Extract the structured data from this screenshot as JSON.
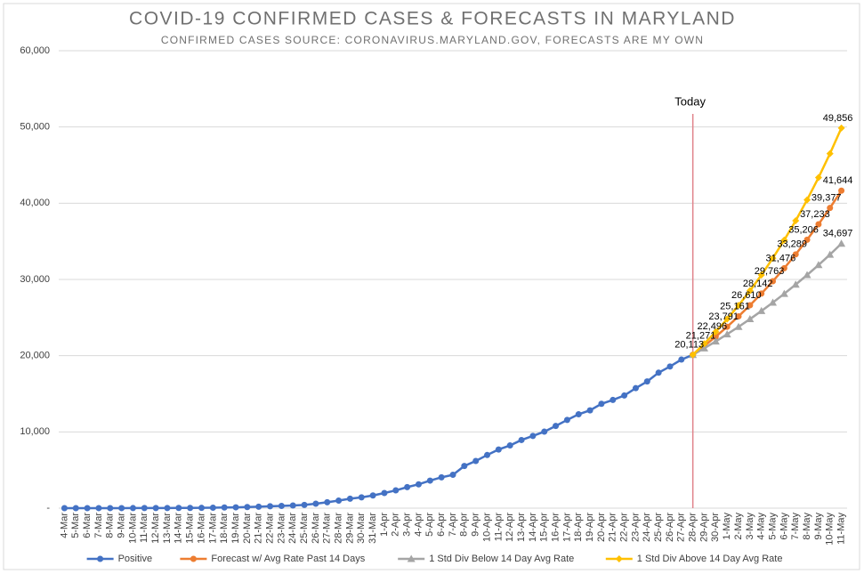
{
  "chart_data": {
    "type": "line",
    "title": "COVID-19 CONFIRMED CASES & FORECASTS IN MARYLAND",
    "subtitle": "CONFIRMED CASES SOURCE: CORONAVIRUS.MARYLAND.GOV, FORECASTS ARE MY OWN",
    "categories": [
      "4-Mar",
      "5-Mar",
      "6-Mar",
      "7-Mar",
      "8-Mar",
      "9-Mar",
      "10-Mar",
      "11-Mar",
      "12-Mar",
      "13-Mar",
      "14-Mar",
      "15-Mar",
      "16-Mar",
      "17-Mar",
      "18-Mar",
      "19-Mar",
      "20-Mar",
      "21-Mar",
      "22-Mar",
      "23-Mar",
      "24-Mar",
      "25-Mar",
      "26-Mar",
      "27-Mar",
      "28-Mar",
      "29-Mar",
      "30-Mar",
      "31-Mar",
      "1-Apr",
      "2-Apr",
      "3-Apr",
      "4-Apr",
      "5-Apr",
      "6-Apr",
      "7-Apr",
      "8-Apr",
      "9-Apr",
      "10-Apr",
      "11-Apr",
      "12-Apr",
      "13-Apr",
      "14-Apr",
      "15-Apr",
      "16-Apr",
      "17-Apr",
      "18-Apr",
      "19-Apr",
      "20-Apr",
      "21-Apr",
      "22-Apr",
      "23-Apr",
      "24-Apr",
      "25-Apr",
      "26-Apr",
      "27-Apr",
      "28-Apr",
      "29-Apr",
      "30-Apr",
      "1-May",
      "2-May",
      "3-May",
      "4-May",
      "5-May",
      "6-May",
      "7-May",
      "8-May",
      "9-May",
      "10-May",
      "11-May"
    ],
    "series": [
      {
        "name": "Positive",
        "color": "#4472c4",
        "marker": "circle",
        "values": [
          0,
          3,
          3,
          5,
          5,
          5,
          9,
          12,
          12,
          18,
          26,
          31,
          37,
          57,
          85,
          107,
          149,
          190,
          244,
          288,
          349,
          423,
          580,
          774,
          992,
          1239,
          1413,
          1660,
          1985,
          2331,
          2758,
          3125,
          3609,
          4045,
          4371,
          5529,
          6185,
          6968,
          7694,
          8225,
          8936,
          9472,
          10032,
          10784,
          11572,
          12308,
          12830,
          13684,
          14193,
          14775,
          15737,
          16616,
          17766,
          18581,
          19487,
          20113,
          null,
          null,
          null,
          null,
          null,
          null,
          null,
          null,
          null,
          null,
          null,
          null,
          null
        ]
      },
      {
        "name": "Forecast w/ Avg Rate Past 14 Days",
        "color": "#ed7d31",
        "marker": "circle",
        "values": [
          null,
          null,
          null,
          null,
          null,
          null,
          null,
          null,
          null,
          null,
          null,
          null,
          null,
          null,
          null,
          null,
          null,
          null,
          null,
          null,
          null,
          null,
          null,
          null,
          null,
          null,
          null,
          null,
          null,
          null,
          null,
          null,
          null,
          null,
          null,
          null,
          null,
          null,
          null,
          null,
          null,
          null,
          null,
          null,
          null,
          null,
          null,
          null,
          null,
          null,
          null,
          null,
          null,
          null,
          null,
          20113,
          21271,
          22496,
          23791,
          25161,
          26610,
          28142,
          29763,
          31476,
          33289,
          35206,
          37233,
          39377,
          41644
        ],
        "value_labels": [
          null,
          null,
          null,
          null,
          null,
          null,
          null,
          null,
          null,
          null,
          null,
          null,
          null,
          null,
          null,
          null,
          null,
          null,
          null,
          null,
          null,
          null,
          null,
          null,
          null,
          null,
          null,
          null,
          null,
          null,
          null,
          null,
          null,
          null,
          null,
          null,
          null,
          null,
          null,
          null,
          null,
          null,
          null,
          null,
          null,
          null,
          null,
          null,
          null,
          null,
          null,
          null,
          null,
          null,
          null,
          "20,113",
          "21,271",
          "22,496",
          "23,791",
          "25,161",
          "26,610",
          "28,142",
          "29,763",
          "31,476",
          "33,289",
          "35,206",
          "37,233",
          "39,377",
          "41,644"
        ]
      },
      {
        "name": "1 Std Div Below 14 Day Avg Rate",
        "color": "#a5a5a5",
        "marker": "triangle",
        "values": [
          null,
          null,
          null,
          null,
          null,
          null,
          null,
          null,
          null,
          null,
          null,
          null,
          null,
          null,
          null,
          null,
          null,
          null,
          null,
          null,
          null,
          null,
          null,
          null,
          null,
          null,
          null,
          null,
          null,
          null,
          null,
          null,
          null,
          null,
          null,
          null,
          null,
          null,
          null,
          null,
          null,
          null,
          null,
          null,
          null,
          null,
          null,
          null,
          null,
          null,
          null,
          null,
          null,
          null,
          null,
          20113,
          20974,
          21872,
          22808,
          23784,
          24802,
          25864,
          26971,
          28125,
          29329,
          30584,
          31893,
          33258,
          34697
        ],
        "value_labels": [
          null,
          null,
          null,
          null,
          null,
          null,
          null,
          null,
          null,
          null,
          null,
          null,
          null,
          null,
          null,
          null,
          null,
          null,
          null,
          null,
          null,
          null,
          null,
          null,
          null,
          null,
          null,
          null,
          null,
          null,
          null,
          null,
          null,
          null,
          null,
          null,
          null,
          null,
          null,
          null,
          null,
          null,
          null,
          null,
          null,
          null,
          null,
          null,
          null,
          null,
          null,
          null,
          null,
          null,
          null,
          null,
          null,
          null,
          null,
          null,
          null,
          null,
          null,
          null,
          null,
          null,
          null,
          null,
          "34,697"
        ]
      },
      {
        "name": "1 Std Div Above 14 Day Avg Rate",
        "color": "#ffc000",
        "marker": "diamond",
        "values": [
          null,
          null,
          null,
          null,
          null,
          null,
          null,
          null,
          null,
          null,
          null,
          null,
          null,
          null,
          null,
          null,
          null,
          null,
          null,
          null,
          null,
          null,
          null,
          null,
          null,
          null,
          null,
          null,
          null,
          null,
          null,
          null,
          null,
          null,
          null,
          null,
          null,
          null,
          null,
          null,
          null,
          null,
          null,
          null,
          null,
          null,
          null,
          null,
          null,
          null,
          null,
          null,
          null,
          null,
          null,
          20113,
          21568,
          23128,
          24801,
          26595,
          28519,
          30582,
          32794,
          35166,
          37710,
          40438,
          43363,
          46500,
          49856
        ],
        "value_labels": [
          null,
          null,
          null,
          null,
          null,
          null,
          null,
          null,
          null,
          null,
          null,
          null,
          null,
          null,
          null,
          null,
          null,
          null,
          null,
          null,
          null,
          null,
          null,
          null,
          null,
          null,
          null,
          null,
          null,
          null,
          null,
          null,
          null,
          null,
          null,
          null,
          null,
          null,
          null,
          null,
          null,
          null,
          null,
          null,
          null,
          null,
          null,
          null,
          null,
          null,
          null,
          null,
          null,
          null,
          null,
          null,
          null,
          null,
          null,
          null,
          null,
          null,
          null,
          null,
          null,
          null,
          null,
          null,
          "49,856"
        ]
      }
    ],
    "ylim": [
      0,
      60000
    ],
    "yticks": [
      {
        "value": 0,
        "label": "-"
      },
      {
        "value": 10000,
        "label": "10,000"
      },
      {
        "value": 20000,
        "label": "20,000"
      },
      {
        "value": 30000,
        "label": "30,000"
      },
      {
        "value": 40000,
        "label": "40,000"
      },
      {
        "value": 50000,
        "label": "50,000"
      },
      {
        "value": 60000,
        "label": "60,000"
      }
    ],
    "grid": true,
    "legend": "bottom",
    "annotations": [
      {
        "text": "Today",
        "x": "28-Apr",
        "color": "#e0828a"
      }
    ]
  }
}
